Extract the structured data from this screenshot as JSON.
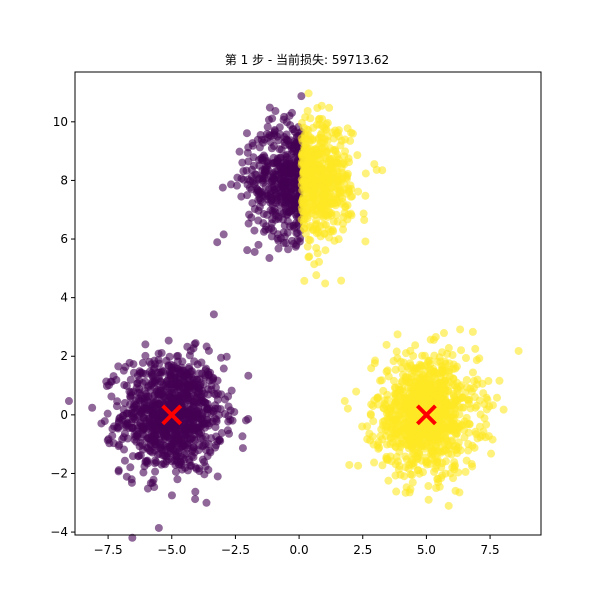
{
  "chart_data": {
    "type": "scatter",
    "title": "第 1 步 - 当前损失: 59713.62",
    "xlabel": "",
    "ylabel": "",
    "xlim": [
      -8.8,
      9.5
    ],
    "ylim": [
      -4.1,
      11.7
    ],
    "xticks": [
      -7.5,
      -5.0,
      -2.5,
      0.0,
      2.5,
      5.0,
      7.5
    ],
    "yticks": [
      -4,
      -2,
      0,
      2,
      4,
      6,
      8,
      10
    ],
    "xtick_labels": [
      "−7.5",
      "−5.0",
      "−2.5",
      "0.0",
      "2.5",
      "5.0",
      "7.5"
    ],
    "ytick_labels": [
      "−4",
      "−2",
      "0",
      "2",
      "4",
      "6",
      "8",
      "10"
    ],
    "grid": false,
    "legend": "none",
    "series": [
      {
        "color": "#440154",
        "blobs": [
          {
            "cx": -5.0,
            "cy": 0.0,
            "sx": 1.0,
            "sy": 1.0,
            "n": 1000,
            "xmin": -99,
            "xmax": 99
          },
          {
            "cx": 0.0,
            "cy": 8.0,
            "sx": 1.0,
            "sy": 1.0,
            "n": 470,
            "xmin": -99,
            "xmax": 0.1
          }
        ]
      },
      {
        "color": "#fde725",
        "blobs": [
          {
            "cx": 5.0,
            "cy": 0.0,
            "sx": 1.0,
            "sy": 1.0,
            "n": 1000,
            "xmin": -99,
            "xmax": 99
          },
          {
            "cx": 0.0,
            "cy": 8.0,
            "sx": 1.0,
            "sy": 1.0,
            "n": 530,
            "xmin": 0.1,
            "xmax": 99
          }
        ]
      }
    ],
    "centroids": {
      "color": "#ff0000",
      "marker": "x",
      "points": [
        {
          "x": -5.0,
          "y": 0.0
        },
        {
          "x": 5.0,
          "y": 0.0
        }
      ]
    }
  }
}
